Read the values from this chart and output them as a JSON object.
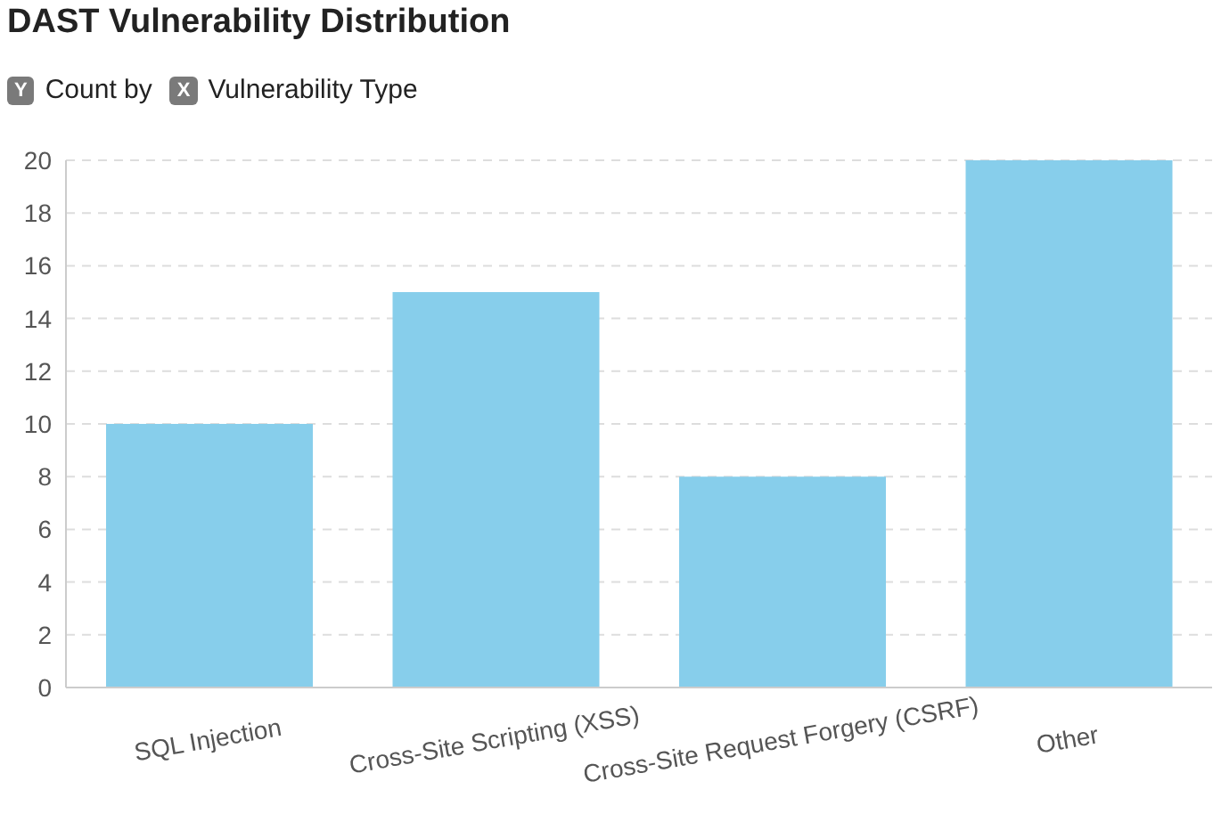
{
  "chart_data": {
    "type": "bar",
    "title": "DAST Vulnerability Distribution",
    "ylabel": "Count by",
    "xlabel": "Vulnerability Type",
    "annotations": [
      "Y",
      "X"
    ],
    "categories": [
      "SQL Injection",
      "Cross-Site Scripting (XSS)",
      "Cross-Site Request Forgery (CSRF)",
      "Other"
    ],
    "values": [
      10,
      15,
      8,
      20
    ],
    "color": "#87ceeb",
    "ylim": [
      0,
      20
    ],
    "yticks": [
      0,
      2,
      4,
      6,
      8,
      10,
      12,
      14,
      16,
      18,
      20
    ],
    "grid": "y"
  }
}
